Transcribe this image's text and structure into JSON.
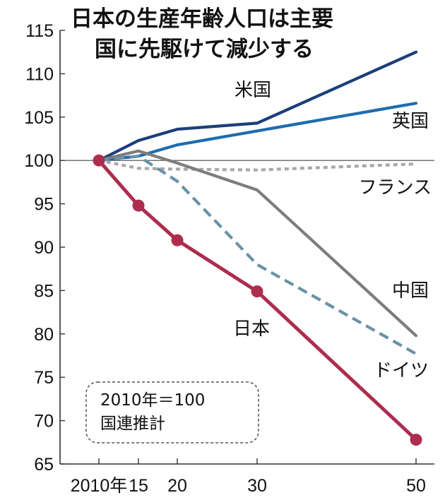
{
  "chart_data": {
    "type": "line",
    "title_lines": [
      "日本の生産年齢人口は主要",
      "国に先駆けて減少する"
    ],
    "note_lines": [
      "2010年＝100",
      "国連推計"
    ],
    "x": [
      2010,
      2015,
      2020,
      2030,
      2050
    ],
    "x_tick_labels": [
      "2010年",
      "15",
      "20",
      "30",
      "50"
    ],
    "ylim": [
      65,
      115
    ],
    "y_ticks": [
      65,
      70,
      75,
      80,
      85,
      90,
      95,
      100,
      105,
      110,
      115
    ],
    "y_tick_labels": [
      "65",
      "70",
      "75",
      "80",
      "85",
      "90",
      "95",
      "100",
      "105",
      "110",
      "115"
    ],
    "baseline": 100,
    "series": [
      {
        "name": "米国",
        "color": "#1b3f7a",
        "style": "solid",
        "markers": false,
        "values": [
          100,
          102.3,
          103.6,
          104.3,
          112.5
        ]
      },
      {
        "name": "英国",
        "color": "#1f6cb0",
        "style": "solid",
        "markers": false,
        "values": [
          100,
          100.5,
          101.8,
          103.4,
          106.6
        ]
      },
      {
        "name": "フランス",
        "color": "#a8a8a8",
        "style": "dotted",
        "markers": false,
        "values": [
          100,
          99.1,
          99.0,
          98.9,
          99.6
        ]
      },
      {
        "name": "中国",
        "color": "#7d7d7d",
        "style": "solid",
        "markers": false,
        "values": [
          100,
          101.1,
          99.7,
          96.6,
          79.8
        ]
      },
      {
        "name": "ドイツ",
        "color": "#6a92a6",
        "style": "dashed",
        "markers": false,
        "values": [
          100,
          100.5,
          97.6,
          88.0,
          77.7
        ]
      },
      {
        "name": "日本",
        "color": "#ad2d4e",
        "style": "solid",
        "markers": true,
        "values": [
          100,
          94.8,
          90.8,
          84.9,
          67.8
        ]
      }
    ]
  }
}
